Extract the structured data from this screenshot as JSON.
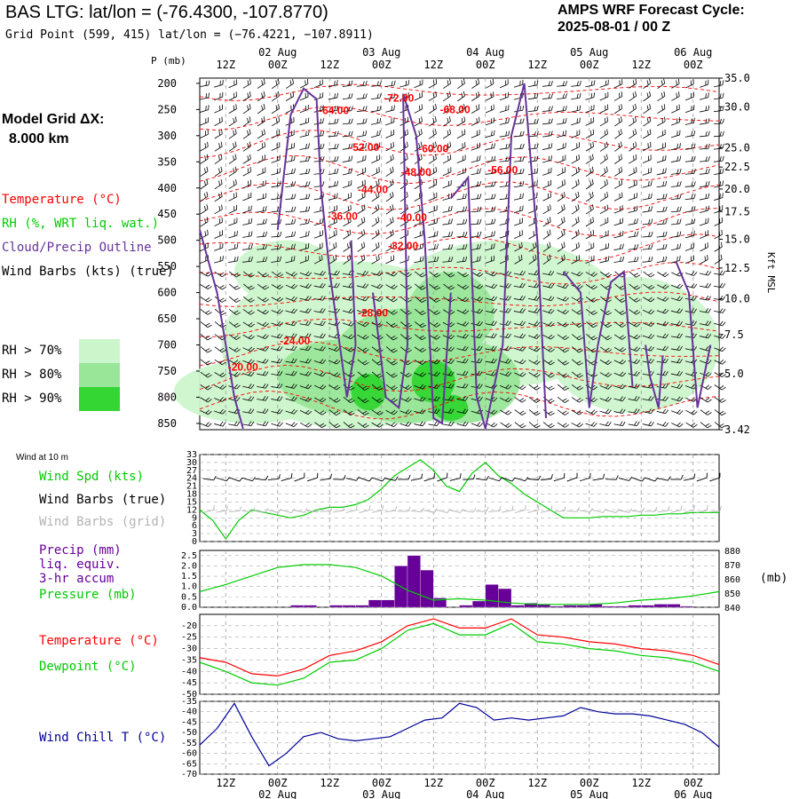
{
  "header": {
    "station_title": "BAS LTG:  lat/lon = (-76.4300, -107.8770)",
    "grid_point": "Grid Point (599, 415) lat/lon = (−76.4221, −107.8911)",
    "cycle_label": "AMPS WRF Forecast Cycle:",
    "cycle_value": "2025-08-01 / 00  Z"
  },
  "legend": {
    "model_grid_label": "Model Grid ΔX:",
    "model_grid_value": "8.000 km",
    "temperature": "Temperature (°C)",
    "rh": "RH (%, WRT liq. wat.)",
    "cloud": "Cloud/Precip Outline",
    "wind": "Wind Barbs (kts) (true)",
    "rh_levels": [
      {
        "label": "RH > 70%",
        "color": "#ccf5cc"
      },
      {
        "label": "RH > 80%",
        "color": "#99e699"
      },
      {
        "label": "RH > 90%",
        "color": "#33d633"
      }
    ],
    "kft_label": "Kft MSL",
    "p_label": "P (mb)",
    "mb_label": "(mb)",
    "wind10_title": "Wind at 10 m",
    "wind_spd": "Wind Spd (kts)",
    "wind_barbs_true": "Wind Barbs (true)",
    "wind_barbs_grid": "Wind Barbs (grid)",
    "precip_lines": [
      "Precip (mm)",
      "liq. equiv.",
      "3-hr accum"
    ],
    "pressure": "Pressure (mb)",
    "temp_panel": "Temperature (°C)",
    "dewpoint": "Dewpoint (°C)",
    "windchill": "Wind Chill T (°C)"
  },
  "colors": {
    "temperature": "#ff0000",
    "rh_green": "#00cc00",
    "cloud": "#663399",
    "precip": "#660099",
    "windchill": "#000099",
    "grey_barbs": "#b4b4b4"
  },
  "chart_data": [
    {
      "type": "heatmap",
      "name": "cross-section",
      "time_axis": {
        "range_hours": [
          0,
          120
        ],
        "top_tick_labels": [
          "12Z",
          "00Z",
          "12Z",
          "00Z",
          "12Z",
          "00Z",
          "12Z",
          "00Z",
          "12Z",
          "00Z"
        ],
        "top_tick_hours": [
          6,
          18,
          30,
          42,
          54,
          66,
          78,
          90,
          102,
          114
        ],
        "date_labels": [
          "02 Aug",
          "03 Aug",
          "04 Aug",
          "05 Aug",
          "06 Aug"
        ],
        "date_hours": [
          18,
          42,
          66,
          90,
          114
        ]
      },
      "pressure_axis": {
        "ticks": [
          200,
          250,
          300,
          350,
          400,
          450,
          500,
          550,
          600,
          650,
          700,
          750,
          800,
          850
        ],
        "range": [
          190,
          862
        ]
      },
      "height_axis_kft": [
        "35.0",
        "30.0",
        "25.0",
        "22.5",
        "20.0",
        "17.5",
        "15.0",
        "12.5",
        "10.0",
        "7.5",
        "5.0",
        "3.42"
      ],
      "height_axis_p": [
        190,
        245,
        323,
        360,
        402,
        445,
        498,
        553,
        612,
        680,
        755,
        862
      ],
      "temperature_contour_labels": [
        {
          "label": "-72.00",
          "hour": 46,
          "p": 228
        },
        {
          "label": "-64.00",
          "hour": 31,
          "p": 252
        },
        {
          "label": "-68.00",
          "hour": 59,
          "p": 250
        },
        {
          "label": "-52.00",
          "hour": 38,
          "p": 322
        },
        {
          "label": "-60.00",
          "hour": 54,
          "p": 325
        },
        {
          "label": "-56.00",
          "hour": 70,
          "p": 366
        },
        {
          "label": "-48.00",
          "hour": 50,
          "p": 370
        },
        {
          "label": "-44.00",
          "hour": 40,
          "p": 403
        },
        {
          "label": "-36.00",
          "hour": 33,
          "p": 454
        },
        {
          "label": "-40.00",
          "hour": 49,
          "p": 456
        },
        {
          "label": "-32.00",
          "hour": 47,
          "p": 511
        },
        {
          "label": "-28.00",
          "hour": 40,
          "p": 639
        },
        {
          "label": "-24.00",
          "hour": 22,
          "p": 692
        },
        {
          "label": "-20.00",
          "hour": 10,
          "p": 742
        }
      ]
    },
    {
      "type": "line",
      "name": "wind-10m",
      "y_ticks": [
        0,
        3,
        6,
        9,
        12,
        15,
        18,
        21,
        24,
        27,
        30,
        33
      ],
      "ylim": [
        0,
        33
      ],
      "x": [
        0,
        3,
        6,
        9,
        12,
        15,
        18,
        21,
        24,
        27,
        30,
        33,
        36,
        39,
        42,
        45,
        48,
        51,
        54,
        57,
        60,
        63,
        66,
        69,
        72,
        75,
        78,
        81,
        84,
        87,
        90,
        93,
        96,
        99,
        102,
        105,
        108,
        111,
        114,
        117,
        120
      ],
      "series": [
        {
          "name": "Wind Spd (kts)",
          "color": "#00cc00",
          "values": [
            12,
            8,
            1,
            8,
            12,
            11,
            10,
            9,
            10,
            12,
            13,
            13,
            14,
            16,
            20,
            25,
            28,
            31,
            27,
            21,
            19,
            26,
            30,
            25,
            22,
            18,
            15,
            12,
            9,
            9,
            9,
            9.5,
            9.5,
            9.5,
            10,
            10,
            10.5,
            10.5,
            11,
            11,
            11
          ]
        }
      ]
    },
    {
      "type": "bar",
      "name": "precip-pressure",
      "y_ticks_left": [
        0.0,
        0.5,
        1.0,
        1.5,
        2.0,
        2.5
      ],
      "ylim_left": [
        0,
        2.75
      ],
      "y_ticks_right": [
        840,
        850,
        860,
        870,
        880
      ],
      "ylim_right": [
        840,
        880
      ],
      "precip_bins_start_hour": [
        0,
        3,
        6,
        9,
        12,
        15,
        18,
        21,
        24,
        27,
        30,
        33,
        36,
        39,
        42,
        45,
        48,
        51,
        54,
        57,
        60,
        63,
        66,
        69,
        72,
        75,
        78,
        81,
        84,
        87,
        90,
        93,
        96,
        99,
        102,
        105,
        108,
        111,
        114,
        117
      ],
      "precip_values": [
        0,
        0,
        0,
        0,
        0,
        0,
        0,
        0.1,
        0.1,
        0,
        0.1,
        0.1,
        0.1,
        0.35,
        0.35,
        2.0,
        2.5,
        1.8,
        0.45,
        0,
        0.1,
        0.3,
        1.1,
        0.9,
        0.1,
        0.2,
        0.15,
        0.05,
        0.1,
        0.1,
        0.15,
        0.05,
        0.05,
        0.1,
        0.1,
        0.15,
        0.15,
        0.05,
        0,
        0
      ],
      "pressure_x": [
        0,
        6,
        12,
        18,
        24,
        30,
        36,
        42,
        48,
        54,
        60,
        66,
        72,
        78,
        84,
        90,
        96,
        102,
        108,
        114,
        120
      ],
      "pressure_values": [
        851,
        856,
        862,
        868,
        870,
        870,
        868,
        862,
        852,
        845,
        846,
        845,
        843,
        842,
        842,
        842,
        843,
        845,
        846,
        848,
        851
      ]
    },
    {
      "type": "line",
      "name": "temperature-dewpoint",
      "y_ticks": [
        -20,
        -25,
        -30,
        -35,
        -40,
        -45,
        -50
      ],
      "ylim": [
        -50,
        -15
      ],
      "x": [
        0,
        6,
        12,
        18,
        24,
        30,
        36,
        42,
        48,
        54,
        60,
        66,
        72,
        78,
        84,
        90,
        96,
        102,
        108,
        114,
        120
      ],
      "series": [
        {
          "name": "Temperature (°C)",
          "color": "#ff0000",
          "values": [
            -34,
            -36,
            -41,
            -42,
            -39,
            -33,
            -31,
            -27,
            -20,
            -17,
            -21,
            -21,
            -17,
            -24,
            -25,
            -27,
            -28,
            -30,
            -31,
            -33,
            -37
          ]
        },
        {
          "name": "Dewpoint (°C)",
          "color": "#00cc00",
          "values": [
            -36,
            -40,
            -45,
            -46,
            -43,
            -36,
            -35,
            -30,
            -22,
            -19,
            -24,
            -24,
            -19,
            -27,
            -28,
            -30,
            -31,
            -33,
            -34,
            -36,
            -40
          ]
        }
      ]
    },
    {
      "type": "line",
      "name": "wind-chill",
      "y_ticks": [
        -35,
        -40,
        -45,
        -50,
        -55,
        -60,
        -65,
        -70
      ],
      "ylim": [
        -70,
        -35
      ],
      "x": [
        0,
        4,
        8,
        12,
        16,
        20,
        24,
        28,
        32,
        36,
        40,
        44,
        48,
        52,
        56,
        60,
        64,
        68,
        72,
        76,
        80,
        84,
        88,
        92,
        96,
        100,
        104,
        108,
        112,
        116,
        120
      ],
      "series": [
        {
          "name": "Wind Chill T (°C)",
          "color": "#000099",
          "values": [
            -56,
            -48,
            -36,
            -52,
            -66,
            -60,
            -52,
            -50,
            -53,
            -54,
            -53,
            -52,
            -48,
            -44,
            -43,
            -36,
            -38,
            -44,
            -43,
            -44,
            -43,
            -42,
            -38,
            -40,
            -41,
            -41,
            -42,
            -44,
            -46,
            -50,
            -57
          ]
        }
      ]
    }
  ]
}
